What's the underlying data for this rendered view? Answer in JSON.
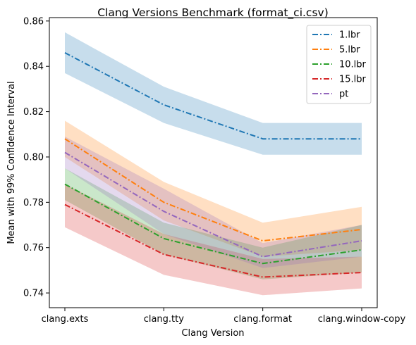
{
  "chart_data": {
    "type": "line",
    "title": "Clang Versions Benchmark (format_ci.csv)",
    "xlabel": "Clang Version",
    "ylabel": "Mean with 99% Confidence Interval",
    "categories": [
      "clang.exts",
      "clang.tty",
      "clang.format",
      "clang.window-copy"
    ],
    "ylim": [
      0.7335,
      0.8615
    ],
    "yticks": [
      0.74,
      0.76,
      0.78,
      0.8,
      0.82,
      0.84,
      0.86
    ],
    "ytick_labels": [
      "0.74",
      "0.76",
      "0.78",
      "0.80",
      "0.82",
      "0.84",
      "0.86"
    ],
    "grid": false,
    "legend_position": "top-right",
    "line_style": "dash-dot",
    "series": [
      {
        "name": "1.lbr",
        "color": "#1f77b4",
        "values": [
          0.846,
          0.823,
          0.808,
          0.808
        ],
        "lower": [
          0.837,
          0.815,
          0.801,
          0.801
        ],
        "upper": [
          0.855,
          0.831,
          0.815,
          0.815
        ]
      },
      {
        "name": "5.lbr",
        "color": "#ff7f0e",
        "values": [
          0.808,
          0.78,
          0.763,
          0.768
        ],
        "lower": [
          0.8,
          0.772,
          0.756,
          0.759
        ],
        "upper": [
          0.816,
          0.789,
          0.771,
          0.778
        ]
      },
      {
        "name": "10.lbr",
        "color": "#2ca02c",
        "values": [
          0.788,
          0.764,
          0.753,
          0.759
        ],
        "lower": [
          0.781,
          0.757,
          0.746,
          0.749
        ],
        "upper": [
          0.795,
          0.771,
          0.76,
          0.77
        ]
      },
      {
        "name": "15.lbr",
        "color": "#d62728",
        "values": [
          0.779,
          0.757,
          0.747,
          0.749
        ],
        "lower": [
          0.769,
          0.748,
          0.739,
          0.742
        ],
        "upper": [
          0.788,
          0.766,
          0.755,
          0.756
        ]
      },
      {
        "name": "pt",
        "color": "#9467bd",
        "values": [
          0.802,
          0.776,
          0.756,
          0.763
        ],
        "lower": [
          0.795,
          0.766,
          0.751,
          0.756
        ],
        "upper": [
          0.809,
          0.786,
          0.762,
          0.77
        ]
      }
    ]
  }
}
